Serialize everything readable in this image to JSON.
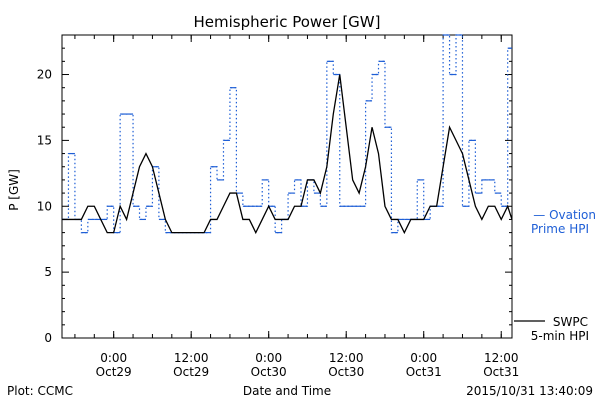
{
  "chart_data": {
    "type": "line",
    "title": "Hemispheric Power [GW]",
    "xlabel": "Date and Time",
    "ylabel": "P [GW]",
    "xlim": [
      "2015-10-28T16:00",
      "2015-10-31T13:40"
    ],
    "ylim": [
      0,
      23
    ],
    "y_ticks": [
      0,
      5,
      10,
      15,
      20
    ],
    "x_ticks": [
      {
        "t": "2015-10-29T00:00",
        "label": [
          "0:00",
          "Oct29"
        ]
      },
      {
        "t": "2015-10-29T12:00",
        "label": [
          "12:00",
          "Oct29"
        ]
      },
      {
        "t": "2015-10-30T00:00",
        "label": [
          "0:00",
          "Oct30"
        ]
      },
      {
        "t": "2015-10-30T12:00",
        "label": [
          "12:00",
          "Oct30"
        ]
      },
      {
        "t": "2015-10-31T00:00",
        "label": [
          "0:00",
          "Oct31"
        ]
      },
      {
        "t": "2015-10-31T12:00",
        "label": [
          "12:00",
          "Oct31"
        ]
      }
    ],
    "grid": false,
    "series": [
      {
        "name": "Ovation Prime HPI",
        "label_lines": [
          "— Ovation",
          "Prime HPI"
        ],
        "color": "#1f5fd6",
        "style": "dotted-step",
        "points": [
          [
            "2015-10-28T16:00",
            9
          ],
          [
            "2015-10-28T17:00",
            14
          ],
          [
            "2015-10-28T18:00",
            9
          ],
          [
            "2015-10-28T19:00",
            8
          ],
          [
            "2015-10-28T20:00",
            9
          ],
          [
            "2015-10-28T21:00",
            9
          ],
          [
            "2015-10-28T22:00",
            9
          ],
          [
            "2015-10-28T23:00",
            10
          ],
          [
            "2015-10-29T00:00",
            8
          ],
          [
            "2015-10-29T01:00",
            17
          ],
          [
            "2015-10-29T02:00",
            17
          ],
          [
            "2015-10-29T03:00",
            10
          ],
          [
            "2015-10-29T04:00",
            9
          ],
          [
            "2015-10-29T05:00",
            10
          ],
          [
            "2015-10-29T06:00",
            13
          ],
          [
            "2015-10-29T07:00",
            9
          ],
          [
            "2015-10-29T08:00",
            8
          ],
          [
            "2015-10-29T09:00",
            8
          ],
          [
            "2015-10-29T10:00",
            8
          ],
          [
            "2015-10-29T11:00",
            8
          ],
          [
            "2015-10-29T12:00",
            8
          ],
          [
            "2015-10-29T13:00",
            8
          ],
          [
            "2015-10-29T14:00",
            8
          ],
          [
            "2015-10-29T15:00",
            13
          ],
          [
            "2015-10-29T16:00",
            12
          ],
          [
            "2015-10-29T17:00",
            15
          ],
          [
            "2015-10-29T18:00",
            19
          ],
          [
            "2015-10-29T19:00",
            11
          ],
          [
            "2015-10-29T20:00",
            10
          ],
          [
            "2015-10-29T21:00",
            10
          ],
          [
            "2015-10-29T22:00",
            10
          ],
          [
            "2015-10-29T23:00",
            12
          ],
          [
            "2015-10-30T00:00",
            10
          ],
          [
            "2015-10-30T01:00",
            8
          ],
          [
            "2015-10-30T02:00",
            9
          ],
          [
            "2015-10-30T03:00",
            11
          ],
          [
            "2015-10-30T04:00",
            12
          ],
          [
            "2015-10-30T05:00",
            10
          ],
          [
            "2015-10-30T06:00",
            12
          ],
          [
            "2015-10-30T07:00",
            11
          ],
          [
            "2015-10-30T08:00",
            10
          ],
          [
            "2015-10-30T09:00",
            21
          ],
          [
            "2015-10-30T10:00",
            20
          ],
          [
            "2015-10-30T11:00",
            10
          ],
          [
            "2015-10-30T12:00",
            10
          ],
          [
            "2015-10-30T13:00",
            10
          ],
          [
            "2015-10-30T14:00",
            10
          ],
          [
            "2015-10-30T15:00",
            18
          ],
          [
            "2015-10-30T16:00",
            20
          ],
          [
            "2015-10-30T17:00",
            21
          ],
          [
            "2015-10-30T18:00",
            16
          ],
          [
            "2015-10-30T19:00",
            8
          ],
          [
            "2015-10-30T20:00",
            9
          ],
          [
            "2015-10-30T21:00",
            9
          ],
          [
            "2015-10-30T22:00",
            9
          ],
          [
            "2015-10-30T23:00",
            12
          ],
          [
            "2015-10-31T00:00",
            9
          ],
          [
            "2015-10-31T01:00",
            10
          ],
          [
            "2015-10-31T02:00",
            10
          ],
          [
            "2015-10-31T03:00",
            23
          ],
          [
            "2015-10-31T04:00",
            20
          ],
          [
            "2015-10-31T05:00",
            23
          ],
          [
            "2015-10-31T06:00",
            10
          ],
          [
            "2015-10-31T07:00",
            15
          ],
          [
            "2015-10-31T08:00",
            11
          ],
          [
            "2015-10-31T09:00",
            12
          ],
          [
            "2015-10-31T10:00",
            12
          ],
          [
            "2015-10-31T11:00",
            11
          ],
          [
            "2015-10-31T12:00",
            10
          ],
          [
            "2015-10-31T13:00",
            22
          ],
          [
            "2015-10-31T13:40",
            22
          ]
        ]
      },
      {
        "name": "SWPC 5-min HPI",
        "label_lines": [
          "SWPC",
          "5-min HPI"
        ],
        "color": "#000000",
        "style": "solid",
        "points": [
          [
            "2015-10-28T16:00",
            9
          ],
          [
            "2015-10-28T17:00",
            9
          ],
          [
            "2015-10-28T18:00",
            9
          ],
          [
            "2015-10-28T19:00",
            9
          ],
          [
            "2015-10-28T20:00",
            10
          ],
          [
            "2015-10-28T21:00",
            10
          ],
          [
            "2015-10-28T22:00",
            9
          ],
          [
            "2015-10-28T23:00",
            8
          ],
          [
            "2015-10-29T00:00",
            8
          ],
          [
            "2015-10-29T01:00",
            10
          ],
          [
            "2015-10-29T02:00",
            9
          ],
          [
            "2015-10-29T03:00",
            11
          ],
          [
            "2015-10-29T04:00",
            13
          ],
          [
            "2015-10-29T05:00",
            14
          ],
          [
            "2015-10-29T06:00",
            13
          ],
          [
            "2015-10-29T07:00",
            11
          ],
          [
            "2015-10-29T08:00",
            9
          ],
          [
            "2015-10-29T09:00",
            8
          ],
          [
            "2015-10-29T10:00",
            8
          ],
          [
            "2015-10-29T11:00",
            8
          ],
          [
            "2015-10-29T12:00",
            8
          ],
          [
            "2015-10-29T13:00",
            8
          ],
          [
            "2015-10-29T14:00",
            8
          ],
          [
            "2015-10-29T15:00",
            9
          ],
          [
            "2015-10-29T16:00",
            9
          ],
          [
            "2015-10-29T17:00",
            10
          ],
          [
            "2015-10-29T18:00",
            11
          ],
          [
            "2015-10-29T19:00",
            11
          ],
          [
            "2015-10-29T20:00",
            9
          ],
          [
            "2015-10-29T21:00",
            9
          ],
          [
            "2015-10-29T22:00",
            8
          ],
          [
            "2015-10-29T23:00",
            9
          ],
          [
            "2015-10-30T00:00",
            10
          ],
          [
            "2015-10-30T01:00",
            9
          ],
          [
            "2015-10-30T02:00",
            9
          ],
          [
            "2015-10-30T03:00",
            9
          ],
          [
            "2015-10-30T04:00",
            10
          ],
          [
            "2015-10-30T05:00",
            10
          ],
          [
            "2015-10-30T06:00",
            12
          ],
          [
            "2015-10-30T07:00",
            12
          ],
          [
            "2015-10-30T08:00",
            11
          ],
          [
            "2015-10-30T09:00",
            13
          ],
          [
            "2015-10-30T10:00",
            17
          ],
          [
            "2015-10-30T11:00",
            20
          ],
          [
            "2015-10-30T12:00",
            16
          ],
          [
            "2015-10-30T13:00",
            12
          ],
          [
            "2015-10-30T14:00",
            11
          ],
          [
            "2015-10-30T15:00",
            13
          ],
          [
            "2015-10-30T16:00",
            16
          ],
          [
            "2015-10-30T17:00",
            14
          ],
          [
            "2015-10-30T18:00",
            10
          ],
          [
            "2015-10-30T19:00",
            9
          ],
          [
            "2015-10-30T20:00",
            9
          ],
          [
            "2015-10-30T21:00",
            8
          ],
          [
            "2015-10-30T22:00",
            9
          ],
          [
            "2015-10-30T23:00",
            9
          ],
          [
            "2015-10-31T00:00",
            9
          ],
          [
            "2015-10-31T01:00",
            10
          ],
          [
            "2015-10-31T02:00",
            10
          ],
          [
            "2015-10-31T03:00",
            13
          ],
          [
            "2015-10-31T04:00",
            16
          ],
          [
            "2015-10-31T05:00",
            15
          ],
          [
            "2015-10-31T06:00",
            14
          ],
          [
            "2015-10-31T07:00",
            12
          ],
          [
            "2015-10-31T08:00",
            10
          ],
          [
            "2015-10-31T09:00",
            9
          ],
          [
            "2015-10-31T10:00",
            10
          ],
          [
            "2015-10-31T11:00",
            10
          ],
          [
            "2015-10-31T12:00",
            9
          ],
          [
            "2015-10-31T13:00",
            10
          ],
          [
            "2015-10-31T13:40",
            9
          ]
        ]
      }
    ]
  },
  "footer": {
    "left": "Plot: CCMC",
    "right": "2015/10/31 13:40:09"
  }
}
